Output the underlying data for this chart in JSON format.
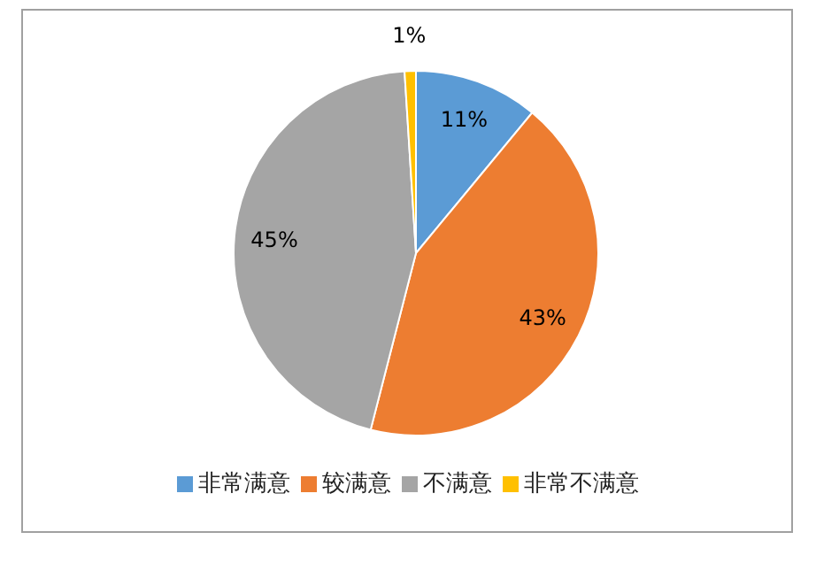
{
  "chart_data": {
    "type": "pie",
    "categories": [
      "非常满意",
      "较满意",
      "不满意",
      "非常不满意"
    ],
    "values": [
      11,
      43,
      45,
      1
    ],
    "colors": [
      "#5b9bd5",
      "#ed7d31",
      "#a5a5a5",
      "#ffc000"
    ],
    "value_labels": [
      "11%",
      "43%",
      "45%",
      "1%"
    ],
    "legend": "bottom"
  }
}
